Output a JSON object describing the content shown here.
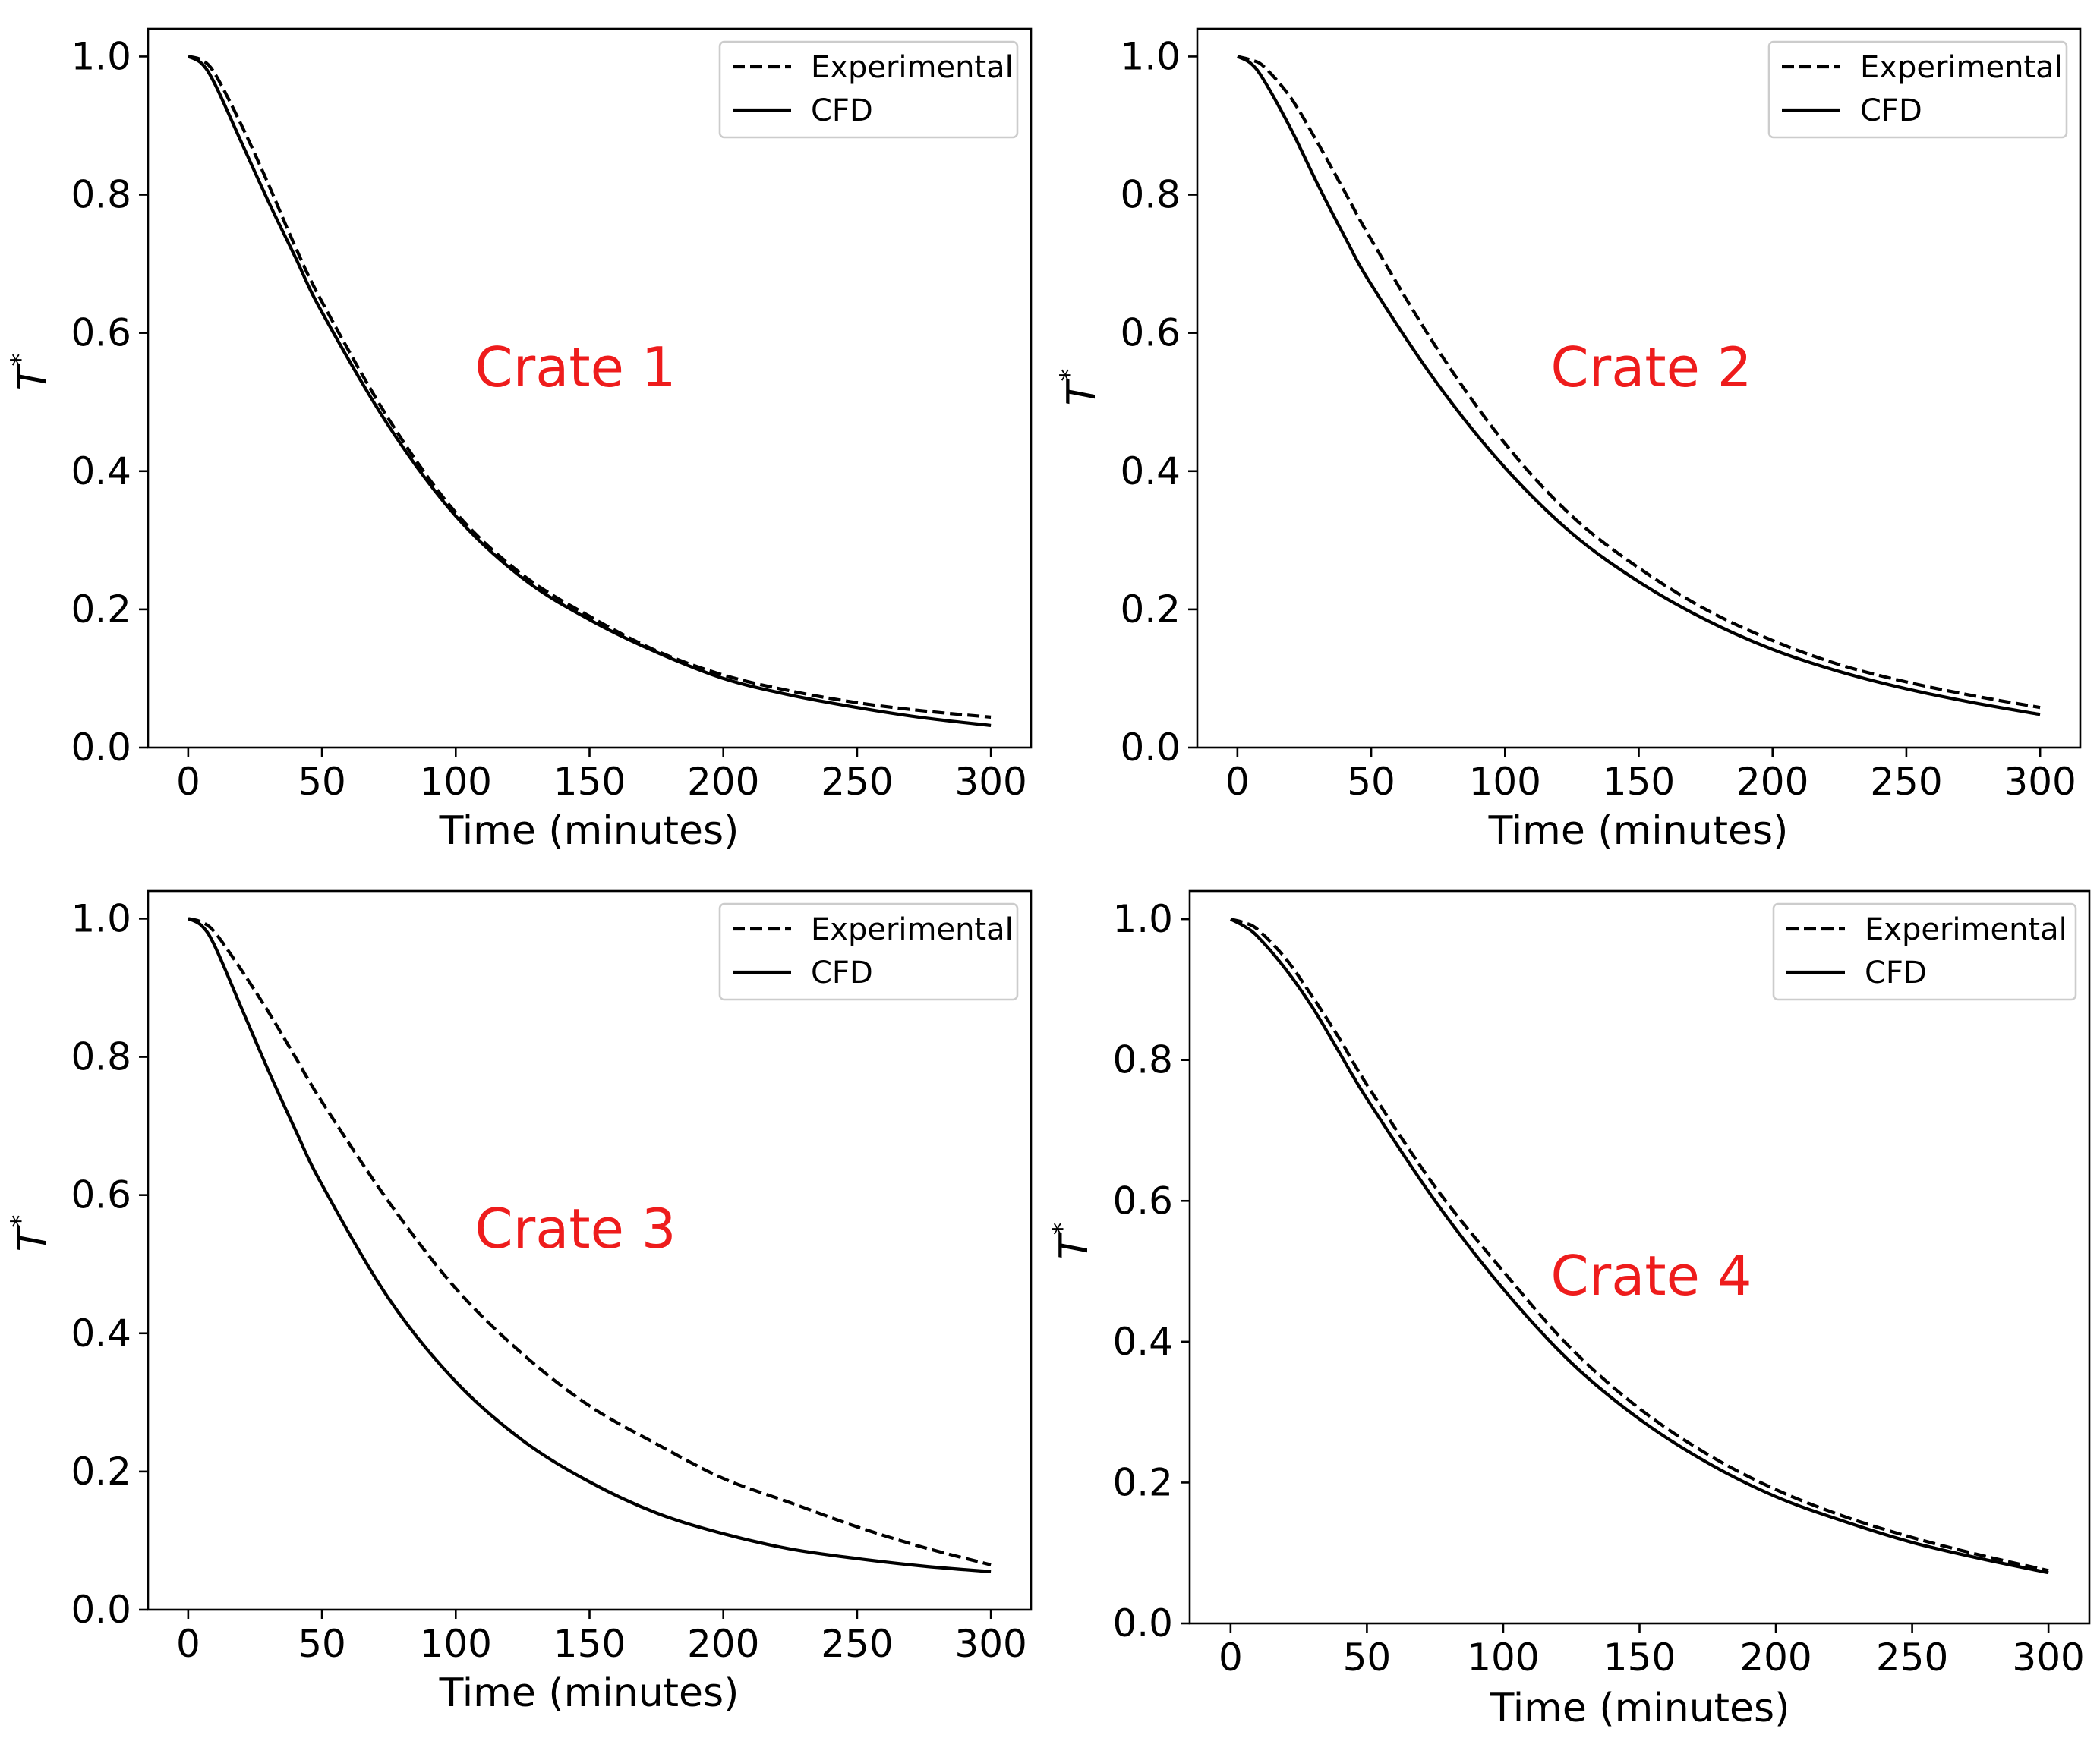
{
  "chart_data": [
    {
      "type": "line",
      "title": "",
      "annotation": "Crate 1",
      "xlabel": "Time (minutes)",
      "ylabel": "T*",
      "xlim": [
        -15,
        315
      ],
      "ylim": [
        0.0,
        1.04
      ],
      "xticks": [
        "0",
        "50",
        "100",
        "150",
        "200",
        "250",
        "300"
      ],
      "yticks": [
        "0.0",
        "0.2",
        "0.4",
        "0.6",
        "0.8",
        "1.0"
      ],
      "legend": {
        "position": "top-right",
        "entries": [
          "Experimental",
          "CFD"
        ]
      },
      "x": [
        0,
        5,
        10,
        20,
        30,
        40,
        50,
        75,
        100,
        125,
        150,
        175,
        200,
        225,
        250,
        275,
        300
      ],
      "series": [
        {
          "name": "Experimental",
          "style": "dashed",
          "values": [
            1.0,
            0.995,
            0.975,
            0.9,
            0.815,
            0.725,
            0.645,
            0.475,
            0.34,
            0.25,
            0.19,
            0.14,
            0.105,
            0.082,
            0.065,
            0.053,
            0.044
          ]
        },
        {
          "name": "CFD",
          "style": "solid",
          "values": [
            1.0,
            0.99,
            0.96,
            0.875,
            0.79,
            0.71,
            0.63,
            0.465,
            0.335,
            0.245,
            0.185,
            0.138,
            0.1,
            0.076,
            0.058,
            0.043,
            0.032
          ]
        }
      ]
    },
    {
      "type": "line",
      "title": "",
      "annotation": "Crate 2",
      "xlabel": "Time (minutes)",
      "ylabel": "T*",
      "xlim": [
        -15,
        315
      ],
      "ylim": [
        0.0,
        1.04
      ],
      "xticks": [
        "0",
        "50",
        "100",
        "150",
        "200",
        "250",
        "300"
      ],
      "yticks": [
        "0.0",
        "0.2",
        "0.4",
        "0.6",
        "0.8",
        "1.0"
      ],
      "legend": {
        "position": "top-right",
        "entries": [
          "Experimental",
          "CFD"
        ]
      },
      "x": [
        0,
        5,
        10,
        20,
        30,
        40,
        50,
        75,
        100,
        125,
        150,
        175,
        200,
        225,
        250,
        275,
        300
      ],
      "series": [
        {
          "name": "Experimental",
          "style": "dashed",
          "values": [
            1.0,
            0.995,
            0.985,
            0.94,
            0.875,
            0.805,
            0.735,
            0.575,
            0.44,
            0.335,
            0.26,
            0.2,
            0.155,
            0.12,
            0.095,
            0.075,
            0.058
          ]
        },
        {
          "name": "CFD",
          "style": "solid",
          "values": [
            1.0,
            0.99,
            0.965,
            0.895,
            0.815,
            0.74,
            0.67,
            0.525,
            0.405,
            0.31,
            0.24,
            0.185,
            0.142,
            0.11,
            0.085,
            0.065,
            0.048
          ]
        }
      ]
    },
    {
      "type": "line",
      "title": "",
      "annotation": "Crate 3",
      "xlabel": "Time (minutes)",
      "ylabel": "T*",
      "xlim": [
        -15,
        315
      ],
      "ylim": [
        0.0,
        1.04
      ],
      "xticks": [
        "0",
        "50",
        "100",
        "150",
        "200",
        "250",
        "300"
      ],
      "yticks": [
        "0.0",
        "0.2",
        "0.4",
        "0.6",
        "0.8",
        "1.0"
      ],
      "legend": {
        "position": "top-right",
        "entries": [
          "Experimental",
          "CFD"
        ]
      },
      "x": [
        0,
        5,
        10,
        20,
        30,
        40,
        50,
        75,
        100,
        125,
        150,
        175,
        200,
        225,
        250,
        275,
        300
      ],
      "series": [
        {
          "name": "Experimental",
          "style": "dashed",
          "values": [
            1.0,
            0.995,
            0.98,
            0.925,
            0.865,
            0.8,
            0.735,
            0.59,
            0.465,
            0.37,
            0.295,
            0.24,
            0.19,
            0.155,
            0.12,
            0.09,
            0.065
          ]
        },
        {
          "name": "CFD",
          "style": "solid",
          "values": [
            1.0,
            0.99,
            0.96,
            0.87,
            0.78,
            0.695,
            0.615,
            0.45,
            0.33,
            0.245,
            0.185,
            0.14,
            0.11,
            0.088,
            0.074,
            0.063,
            0.055
          ]
        }
      ]
    },
    {
      "type": "line",
      "title": "",
      "annotation": "Crate 4",
      "xlabel": "Time (minutes)",
      "ylabel": "T*",
      "xlim": [
        -15,
        315
      ],
      "ylim": [
        0.0,
        1.04
      ],
      "xticks": [
        "0",
        "50",
        "100",
        "150",
        "200",
        "250",
        "300"
      ],
      "yticks": [
        "0.0",
        "0.2",
        "0.4",
        "0.6",
        "0.8",
        "1.0"
      ],
      "legend": {
        "position": "top-right",
        "entries": [
          "Experimental",
          "CFD"
        ]
      },
      "x": [
        0,
        5,
        10,
        20,
        30,
        40,
        50,
        75,
        100,
        125,
        150,
        175,
        200,
        225,
        250,
        275,
        300
      ],
      "series": [
        {
          "name": "Experimental",
          "style": "dashed",
          "values": [
            1.0,
            0.995,
            0.985,
            0.945,
            0.89,
            0.83,
            0.765,
            0.62,
            0.5,
            0.39,
            0.305,
            0.24,
            0.19,
            0.152,
            0.122,
            0.097,
            0.075
          ]
        },
        {
          "name": "CFD",
          "style": "solid",
          "values": [
            1.0,
            0.99,
            0.975,
            0.93,
            0.875,
            0.81,
            0.745,
            0.6,
            0.475,
            0.37,
            0.29,
            0.228,
            0.18,
            0.145,
            0.115,
            0.092,
            0.072
          ]
        }
      ]
    }
  ]
}
